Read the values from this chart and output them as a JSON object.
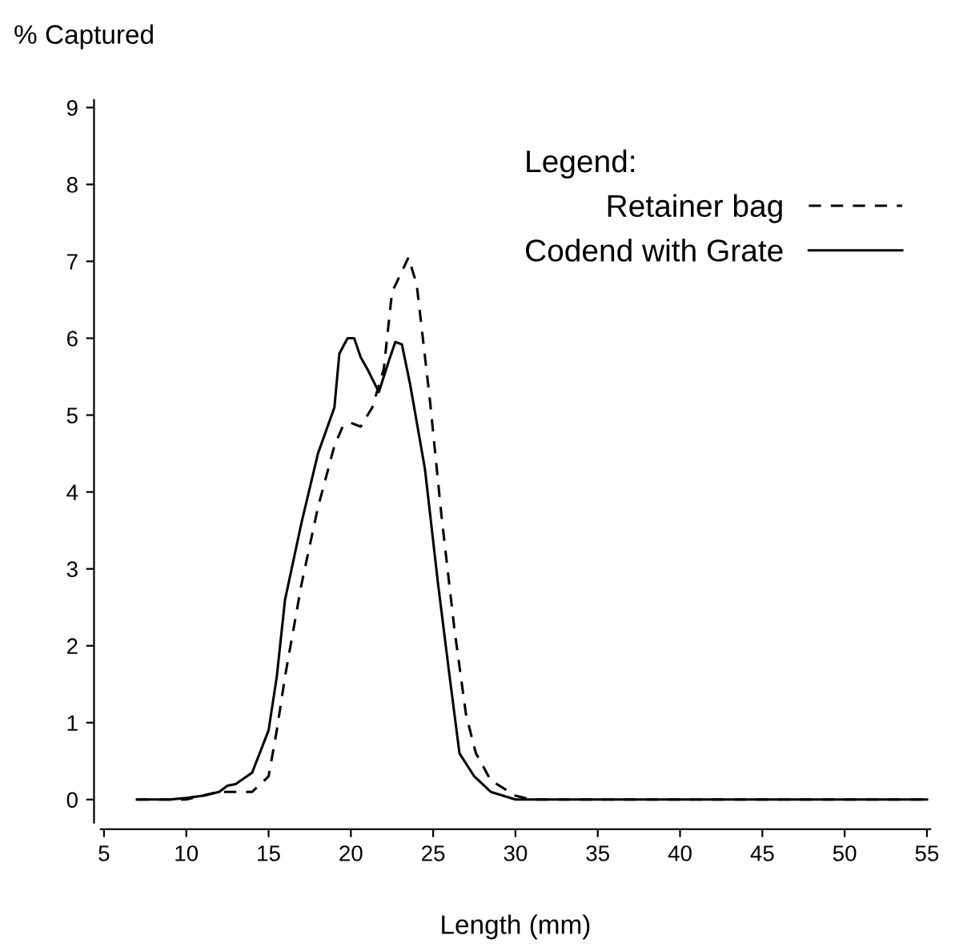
{
  "chart_data": {
    "type": "line",
    "xlabel": "Length (mm)",
    "ylabel": "% Captured",
    "legend_title": "Legend:",
    "xlim": [
      4.8,
      55.2
    ],
    "ylim": [
      -0.3,
      9.1
    ],
    "xticks": [
      5,
      10,
      15,
      20,
      25,
      30,
      35,
      40,
      45,
      50,
      55
    ],
    "yticks": [
      0,
      1,
      2,
      3,
      4,
      5,
      6,
      7,
      8,
      9
    ],
    "grid": false,
    "legend": "top right",
    "marker": "none",
    "series": [
      {
        "name": "Retainer bag",
        "color": "#000000",
        "line_style": "dashed",
        "x": [
          7,
          10,
          11,
          12,
          13,
          14,
          15,
          15.5,
          16,
          17,
          18,
          19,
          19.5,
          20,
          20.6,
          21.3,
          22,
          22.5,
          23.5,
          24,
          24.8,
          25.5,
          26.3,
          27,
          27.6,
          28.5,
          30,
          31,
          55
        ],
        "values": [
          0,
          0,
          0.05,
          0.1,
          0.1,
          0.1,
          0.3,
          0.9,
          1.6,
          2.8,
          3.8,
          4.6,
          4.85,
          4.9,
          4.85,
          5.1,
          5.6,
          6.6,
          7.05,
          6.7,
          5.2,
          3.7,
          2.2,
          1.1,
          0.6,
          0.25,
          0.05,
          0,
          0
        ]
      },
      {
        "name": "Codend with Grate",
        "color": "#000000",
        "line_style": "solid",
        "x": [
          7,
          9,
          10,
          11,
          12,
          12.5,
          13,
          14,
          15,
          15.5,
          16,
          17,
          18,
          19,
          19.3,
          19.8,
          20.2,
          20.6,
          21,
          21.7,
          22.3,
          22.7,
          23.1,
          23.6,
          24.5,
          25.3,
          26,
          26.6,
          27.5,
          28.5,
          30,
          55
        ],
        "values": [
          0,
          0,
          0.02,
          0.05,
          0.1,
          0.18,
          0.2,
          0.35,
          0.9,
          1.6,
          2.6,
          3.6,
          4.5,
          5.1,
          5.8,
          6.0,
          6.0,
          5.75,
          5.6,
          5.3,
          5.7,
          5.95,
          5.92,
          5.4,
          4.3,
          2.8,
          1.6,
          0.6,
          0.3,
          0.1,
          0,
          0
        ]
      }
    ]
  }
}
